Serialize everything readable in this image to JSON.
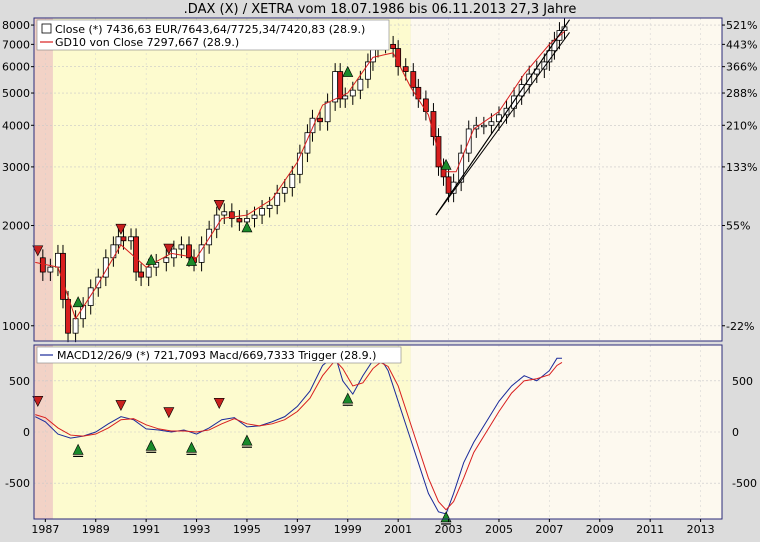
{
  "title": ".DAX (X) / XETRA vom 18.07.1986 bis 06.11.2013 27,3 Jahre",
  "colors": {
    "bg_red": "#f2d2c6",
    "bg_yellow": "#fdfbcf",
    "bg_white": "#fdf9ef",
    "candle": "#000000",
    "gd10": "#d81e1e",
    "macd": "#1a2a9a",
    "trigger": "#d81e1e",
    "buy": "#1a8a2a",
    "sell": "#c8201e",
    "frame": "#2a2a7a"
  },
  "legend_top": [
    {
      "symbol": "candle",
      "text": "Close (*) 7436,63 EUR/7643,64/7725,34/7420,83 (28.9.)"
    },
    {
      "symbol": "line",
      "text": "GD10 von Close 7297,667 (28.9.)"
    }
  ],
  "legend_bottom": {
    "text": "MACD12/26/9 (*) 721,7093 Macd/669,7333 Trigger (28.9.)"
  },
  "x_ticks": [
    "1987",
    "1989",
    "1991",
    "1993",
    "1995",
    "1997",
    "1999",
    "2001",
    "2003",
    "2005",
    "2007",
    "2009",
    "2011",
    "2013"
  ],
  "left_ticks_top": [
    "8000",
    "7000",
    "6000",
    "5000",
    "4000",
    "3000",
    "2000",
    "1000"
  ],
  "right_ticks_top": [
    "521%",
    "443%",
    "366%",
    "288%",
    "210%",
    "133%",
    "55%",
    "-22%"
  ],
  "left_ticks_bottom": [
    "500",
    "0",
    "-500"
  ],
  "right_ticks_bottom": [
    "500",
    "0",
    "-500"
  ],
  "chart_data": [
    {
      "type": "candlestick",
      "title": ".DAX (X) / XETRA vom 18.07.1986 bis 06.11.2013 27,3 Jahre",
      "y_scale": "log",
      "ylim": [
        900,
        8400
      ],
      "xlim": [
        1986.55,
        2013.85
      ],
      "background_zones": [
        {
          "from": 1986.55,
          "to": 1987.3,
          "color": "#f2d2c6"
        },
        {
          "from": 1987.3,
          "to": 2001.5,
          "color": "#fdfbcf"
        },
        {
          "from": 2001.5,
          "to": 2013.85,
          "color": "#fdf9ef"
        }
      ],
      "close_series": {
        "x": [
          1986.6,
          1986.9,
          1987.2,
          1987.5,
          1987.7,
          1987.9,
          1988.2,
          1988.5,
          1988.8,
          1989.1,
          1989.4,
          1989.7,
          1989.9,
          1990.1,
          1990.4,
          1990.6,
          1990.8,
          1991.1,
          1991.4,
          1991.8,
          1992.1,
          1992.4,
          1992.7,
          1992.9,
          1993.2,
          1993.5,
          1993.8,
          1994.1,
          1994.4,
          1994.7,
          1995.0,
          1995.3,
          1995.6,
          1995.9,
          1996.2,
          1996.5,
          1996.8,
          1997.1,
          1997.4,
          1997.6,
          1997.9,
          1998.2,
          1998.5,
          1998.7,
          1998.9,
          1999.2,
          1999.5,
          1999.8,
          2000.0,
          2000.2,
          2000.5,
          2000.8,
          2001.0,
          2001.3,
          2001.6,
          2001.8,
          2002.1,
          2002.4,
          2002.6,
          2002.8,
          2003.0,
          2003.2,
          2003.5,
          2003.8,
          2004.1,
          2004.4,
          2004.7,
          2005.0,
          2005.3,
          2005.6,
          2005.9,
          2006.2,
          2006.5,
          2006.8,
          2007.0,
          2007.2,
          2007.4,
          2007.6
        ],
        "y": [
          1600,
          1450,
          1500,
          1650,
          1200,
          950,
          1050,
          1150,
          1300,
          1400,
          1600,
          1750,
          1850,
          1800,
          1850,
          1450,
          1400,
          1500,
          1550,
          1600,
          1700,
          1750,
          1600,
          1550,
          1750,
          1950,
          2150,
          2200,
          2100,
          2050,
          2100,
          2150,
          2250,
          2300,
          2500,
          2600,
          2850,
          3300,
          3800,
          4200,
          4100,
          4700,
          5800,
          4800,
          4900,
          5100,
          5500,
          6200,
          6800,
          7200,
          7000,
          6800,
          6000,
          5800,
          5200,
          4800,
          4400,
          3700,
          3000,
          2800,
          2500,
          2700,
          3300,
          3900,
          4000,
          4000,
          4100,
          4300,
          4500,
          4900,
          5300,
          5700,
          5900,
          6200,
          6700,
          7200,
          7700,
          7900
        ]
      },
      "gd10": {
        "x": [
          1986.6,
          1987.5,
          1988.2,
          1989.0,
          1990.0,
          1991.0,
          1992.0,
          1993.0,
          1994.0,
          1995.0,
          1996.0,
          1997.0,
          1998.0,
          1999.0,
          2000.0,
          2000.8,
          2001.5,
          2002.2,
          2002.8,
          2003.3,
          2004.0,
          2005.0,
          2006.0,
          2007.0,
          2007.6
        ],
        "y": [
          1550,
          1500,
          1050,
          1300,
          1750,
          1500,
          1650,
          1600,
          2100,
          2150,
          2400,
          3100,
          4600,
          5000,
          6400,
          6600,
          5200,
          4300,
          2900,
          2900,
          3900,
          4400,
          5700,
          7000,
          7650
        ]
      },
      "signals": [
        {
          "kind": "sell",
          "x": 1986.7,
          "y": 1680
        },
        {
          "kind": "buy",
          "x": 1988.3,
          "y": 1180
        },
        {
          "kind": "sell",
          "x": 1990.0,
          "y": 1950
        },
        {
          "kind": "buy",
          "x": 1991.2,
          "y": 1580
        },
        {
          "kind": "sell",
          "x": 1991.9,
          "y": 1700
        },
        {
          "kind": "buy",
          "x": 1992.8,
          "y": 1570
        },
        {
          "kind": "sell",
          "x": 1993.9,
          "y": 2300
        },
        {
          "kind": "buy",
          "x": 1995.0,
          "y": 1980
        },
        {
          "kind": "buy",
          "x": 1999.0,
          "y": 5800
        },
        {
          "kind": "buy",
          "x": 2002.9,
          "y": 3050
        }
      ],
      "trend_lines": [
        {
          "x": [
            2002.5,
            2007.8
          ],
          "y": [
            2150,
            8300
          ]
        },
        {
          "x": [
            2002.5,
            2007.8
          ],
          "y": [
            2150,
            7600
          ]
        },
        {
          "x": [
            2002.5,
            2007.8
          ],
          "y": [
            2150,
            8300
          ]
        }
      ]
    },
    {
      "type": "line",
      "ylim": [
        -850,
        850
      ],
      "series": [
        {
          "name": "MACD12/26/9",
          "x": [
            1986.6,
            1987.0,
            1987.5,
            1988.0,
            1988.5,
            1989.0,
            1989.5,
            1990.0,
            1990.5,
            1991.0,
            1991.5,
            1992.0,
            1992.5,
            1993.0,
            1993.5,
            1994.0,
            1994.5,
            1995.0,
            1995.5,
            1996.0,
            1996.5,
            1997.0,
            1997.5,
            1998.0,
            1998.5,
            1998.8,
            1999.2,
            1999.6,
            2000.0,
            2000.3,
            2000.6,
            2001.0,
            2001.4,
            2001.8,
            2002.2,
            2002.6,
            2002.9,
            2003.2,
            2003.6,
            2004.0,
            2004.5,
            2005.0,
            2005.5,
            2006.0,
            2006.5,
            2007.0,
            2007.3,
            2007.5
          ],
          "y": [
            150,
            100,
            -20,
            -60,
            -40,
            0,
            80,
            150,
            120,
            30,
            20,
            0,
            20,
            -20,
            40,
            120,
            140,
            50,
            60,
            100,
            150,
            250,
            400,
            650,
            750,
            500,
            370,
            550,
            700,
            720,
            600,
            300,
            0,
            -300,
            -600,
            -780,
            -800,
            -600,
            -300,
            -100,
            100,
            300,
            450,
            550,
            500,
            600,
            720,
            720
          ]
        },
        {
          "name": "Trigger",
          "x": [
            1986.6,
            1987.0,
            1987.5,
            1988.0,
            1988.5,
            1989.0,
            1989.5,
            1990.0,
            1990.5,
            1991.0,
            1991.5,
            1992.0,
            1992.5,
            1993.0,
            1993.5,
            1994.0,
            1994.5,
            1995.0,
            1995.5,
            1996.0,
            1996.5,
            1997.0,
            1997.5,
            1998.0,
            1998.5,
            1998.8,
            1999.2,
            1999.6,
            2000.0,
            2000.3,
            2000.6,
            2001.0,
            2001.4,
            2001.8,
            2002.2,
            2002.6,
            2002.9,
            2003.2,
            2003.6,
            2004.0,
            2004.5,
            2005.0,
            2005.5,
            2006.0,
            2006.5,
            2007.0,
            2007.3,
            2007.5
          ],
          "y": [
            170,
            140,
            40,
            -30,
            -40,
            -20,
            40,
            120,
            130,
            70,
            30,
            10,
            10,
            0,
            20,
            80,
            130,
            80,
            60,
            80,
            120,
            200,
            330,
            550,
            700,
            620,
            450,
            480,
            620,
            680,
            640,
            450,
            150,
            -150,
            -450,
            -680,
            -760,
            -680,
            -450,
            -200,
            0,
            200,
            380,
            500,
            520,
            560,
            650,
            680
          ]
        }
      ],
      "signals": [
        {
          "kind": "sell",
          "x": 1986.7,
          "y": 300
        },
        {
          "kind": "buy",
          "x": 1988.3,
          "y": -170
        },
        {
          "kind": "sell",
          "x": 1990.0,
          "y": 260
        },
        {
          "kind": "buy",
          "x": 1991.2,
          "y": -130
        },
        {
          "kind": "sell",
          "x": 1991.9,
          "y": 190
        },
        {
          "kind": "buy",
          "x": 1992.8,
          "y": -150
        },
        {
          "kind": "sell",
          "x": 1993.9,
          "y": 280
        },
        {
          "kind": "buy",
          "x": 1995.0,
          "y": -80
        },
        {
          "kind": "buy",
          "x": 1999.0,
          "y": 330
        },
        {
          "kind": "buy",
          "x": 2002.9,
          "y": -830
        }
      ]
    }
  ]
}
